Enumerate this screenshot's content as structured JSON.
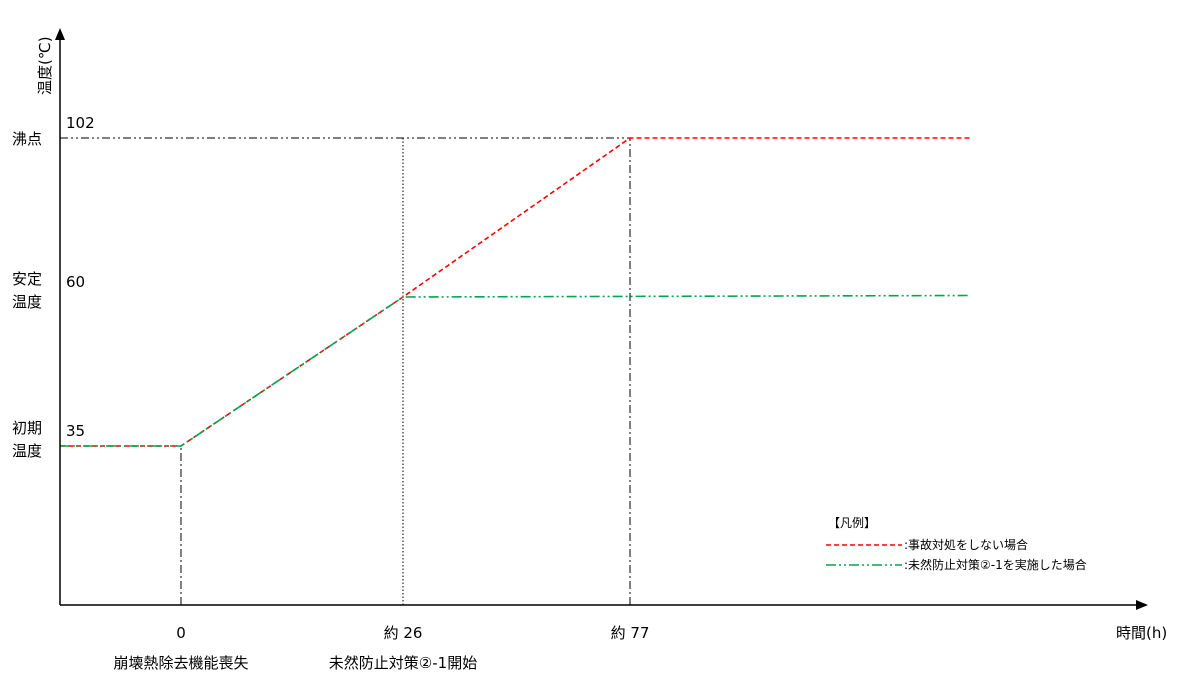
{
  "chart_data": {
    "type": "line",
    "title": "",
    "xlabel": "時間(h)",
    "ylabel": "温度(℃)",
    "x_ticks": [
      {
        "x": 0,
        "label": "0",
        "event": "崩壊熱除去機能喪失"
      },
      {
        "x": 26,
        "label": "約 26",
        "event": "未然防止対策②-1開始"
      },
      {
        "x": 77,
        "label": "約 77",
        "event": ""
      }
    ],
    "y_levels": [
      {
        "y": 102,
        "value_label": "102",
        "name": "沸点"
      },
      {
        "y": 60,
        "value_label": "60",
        "name": "安定\n温度"
      },
      {
        "y": 35,
        "value_label": "35",
        "name": "初期\n温度"
      }
    ],
    "xlim": [
      -14,
      120
    ],
    "ylim": [
      13,
      128
    ],
    "series": [
      {
        "name": "事故対処をしない場合",
        "color": "#ff0000",
        "dash": "dashed",
        "points": [
          [
            -14,
            35
          ],
          [
            0,
            35
          ],
          [
            26,
            60
          ],
          [
            77,
            102
          ],
          [
            117,
            102
          ]
        ]
      },
      {
        "name": "未然防止対策②-1を実施した場合",
        "color": "#00a651",
        "dash": "dash-dot-dot",
        "points": [
          [
            -14,
            35
          ],
          [
            0,
            35
          ],
          [
            26,
            60
          ],
          [
            117,
            60.4
          ]
        ]
      }
    ],
    "legend": {
      "title": "【凡例】",
      "position": "bottom-right"
    }
  }
}
